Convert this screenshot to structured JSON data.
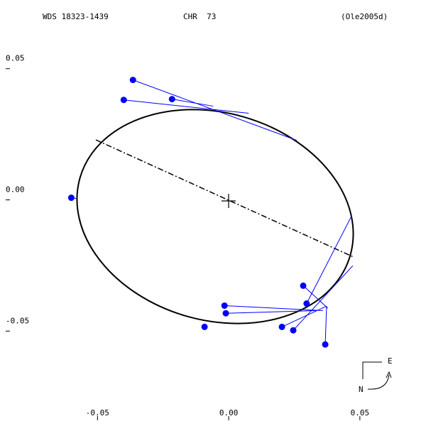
{
  "chart_data": {
    "type": "orbit",
    "title": "WDS 18323-1439",
    "subtitle": "CHR  73",
    "reference": "(Ole2005d)",
    "compass_east": "E",
    "compass_north": "N",
    "color": "#0000ff",
    "xlim": [
      -0.085,
      0.0725
    ],
    "ylim": [
      -0.084,
      0.074
    ],
    "xticks": [
      {
        "value": -0.05,
        "label": "-0.05"
      },
      {
        "value": 0,
        "label": "0.00"
      },
      {
        "value": 0.05,
        "label": "0.05"
      }
    ],
    "yticks": [
      {
        "value": 0.05,
        "label": "0.05"
      },
      {
        "value": 0,
        "label": "0.00"
      },
      {
        "value": -0.05,
        "label": "-0.05"
      }
    ],
    "observed": {
      "x": [
        -0.0365,
        -0.04,
        -0.0216,
        -0.06,
        -0.0016,
        -0.0011,
        -0.0092,
        0.0203,
        0.0246,
        0.0284,
        0.0297,
        0.0368
      ],
      "y": [
        0.0457,
        0.0381,
        0.0384,
        0.0008,
        -0.0403,
        -0.0432,
        -0.0484,
        -0.0484,
        -0.0497,
        -0.0327,
        -0.0395,
        -0.0551
      ]
    },
    "predicted": {
      "x": [
        0.0259,
        0.0076,
        -0.0059,
        -0.0581,
        0.0359,
        0.0332,
        -0.0086,
        0.0373,
        0.0473,
        0.0378,
        0.0468,
        0.0373
      ],
      "y": [
        0.0227,
        0.033,
        0.0357,
        0.0005,
        -0.0422,
        -0.0422,
        -0.0486,
        -0.0405,
        -0.0251,
        -0.0413,
        -0.0062,
        -0.0405
      ]
    }
  }
}
